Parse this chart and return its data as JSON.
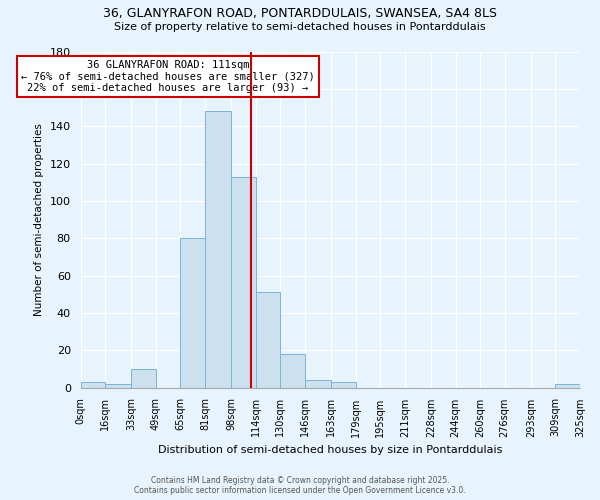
{
  "title1": "36, GLANYRAFON ROAD, PONTARDDULAIS, SWANSEA, SA4 8LS",
  "title2": "Size of property relative to semi-detached houses in Pontarddulais",
  "xlabel": "Distribution of semi-detached houses by size in Pontarddulais",
  "ylabel": "Number of semi-detached properties",
  "bin_labels": [
    "0sqm",
    "16sqm",
    "33sqm",
    "49sqm",
    "65sqm",
    "81sqm",
    "98sqm",
    "114sqm",
    "130sqm",
    "146sqm",
    "163sqm",
    "179sqm",
    "195sqm",
    "211sqm",
    "228sqm",
    "244sqm",
    "260sqm",
    "276sqm",
    "293sqm",
    "309sqm",
    "325sqm"
  ],
  "bin_edges": [
    0,
    16,
    33,
    49,
    65,
    81,
    98,
    114,
    130,
    146,
    163,
    179,
    195,
    211,
    228,
    244,
    260,
    276,
    293,
    309,
    325
  ],
  "bar_heights": [
    3,
    2,
    10,
    0,
    80,
    148,
    113,
    51,
    18,
    4,
    3,
    0,
    0,
    0,
    0,
    0,
    0,
    0,
    0,
    2
  ],
  "bar_color": "#cce0f0",
  "bar_edgecolor": "#7ab4d4",
  "property_value": 111,
  "vline_color": "#cc0000",
  "annotation_title": "36 GLANYRAFON ROAD: 111sqm",
  "annotation_line1": "← 76% of semi-detached houses are smaller (327)",
  "annotation_line2": "22% of semi-detached houses are larger (93) →",
  "annotation_box_edgecolor": "#cc0000",
  "annotation_box_facecolor": "white",
  "ylim": [
    0,
    180
  ],
  "yticks": [
    0,
    20,
    40,
    60,
    80,
    100,
    120,
    140,
    160,
    180
  ],
  "footer1": "Contains HM Land Registry data © Crown copyright and database right 2025.",
  "footer2": "Contains public sector information licensed under the Open Government Licence v3.0.",
  "bg_color": "#e8f4fd"
}
